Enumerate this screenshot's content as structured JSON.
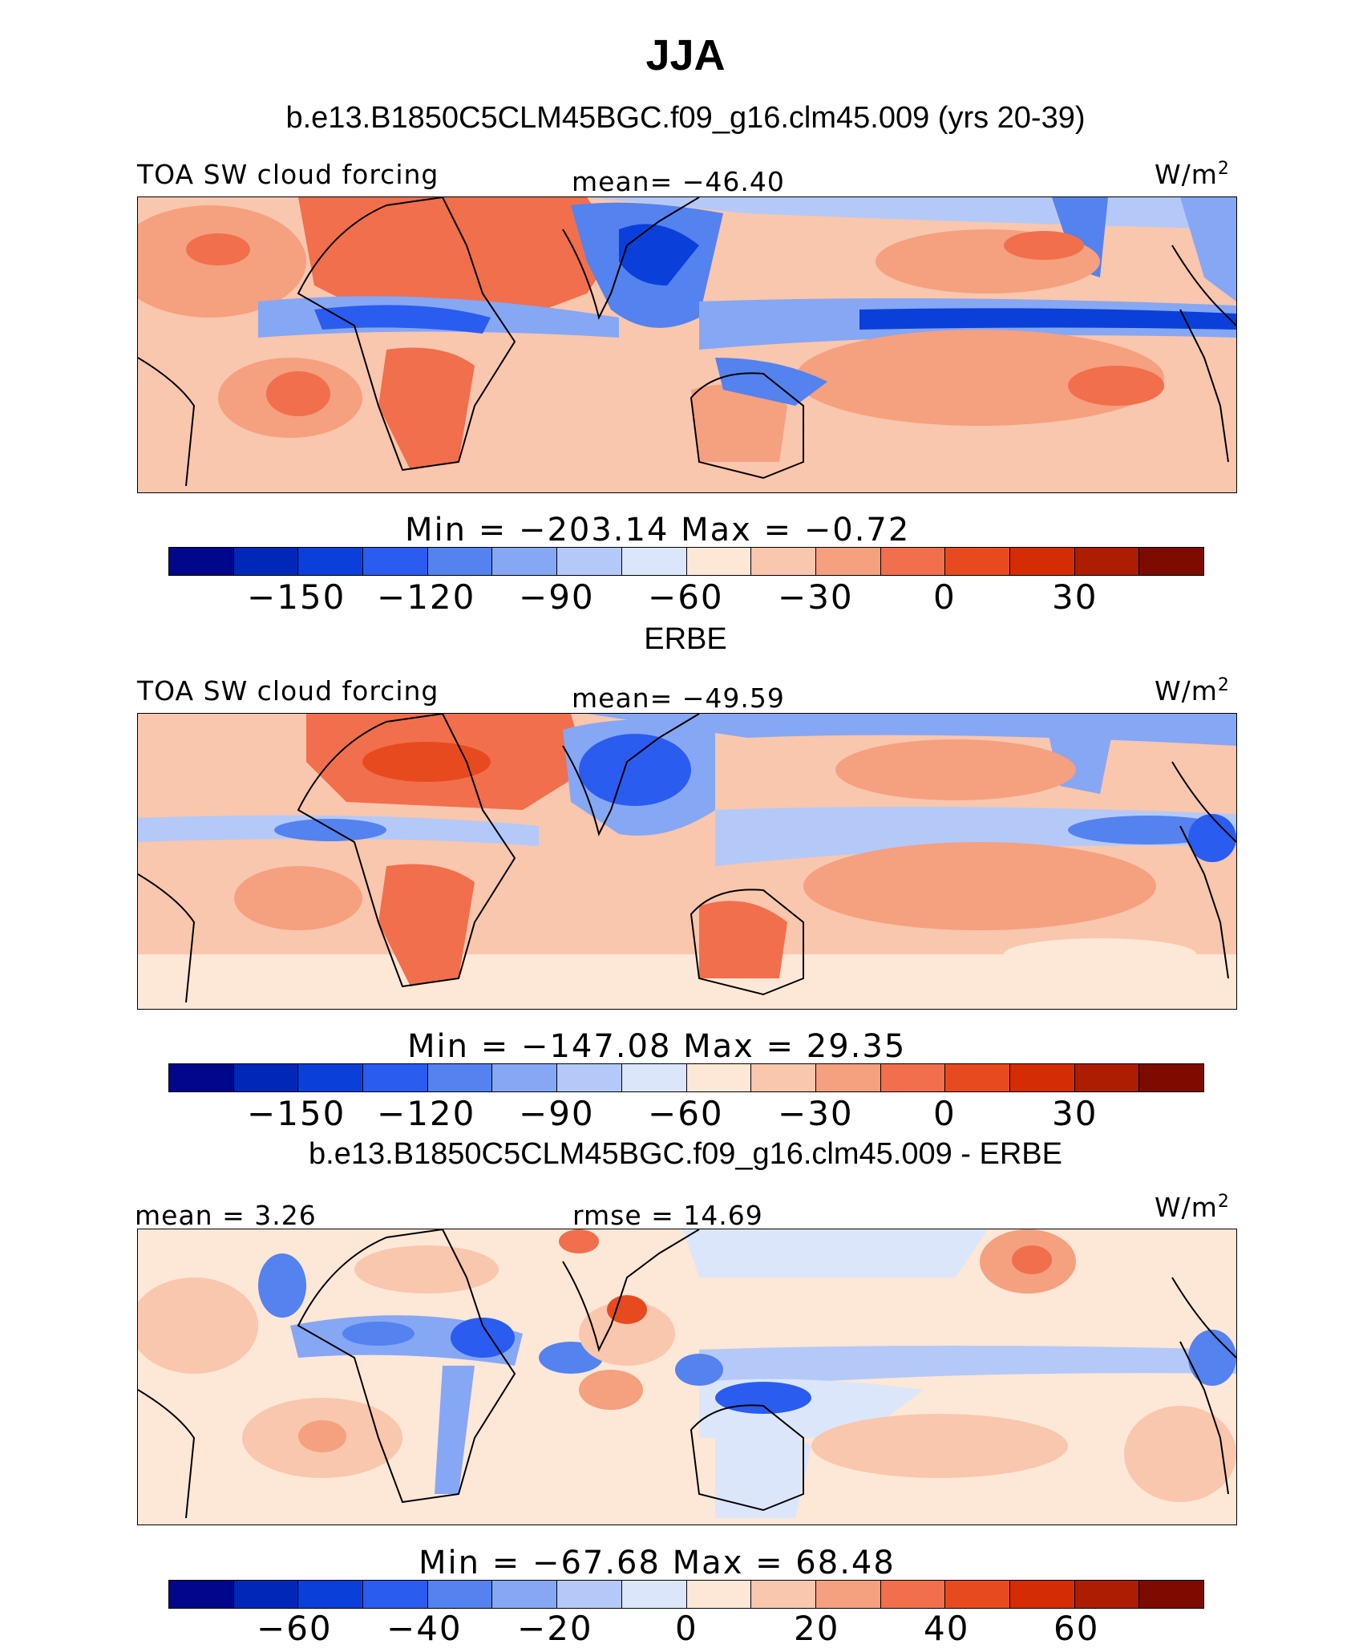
{
  "title": "JJA",
  "panels": [
    {
      "subtitle": "b.e13.B1850C5CLM45BGC.f09_g16.clm45.009 (yrs 20-39)",
      "left_label": "TOA SW cloud forcing",
      "center_label": "mean= −46.40",
      "units": "W/m",
      "units_sup": "2",
      "minmax": "Min  =  −203.14  Max  =   −0.72",
      "colorbar_ticks": [
        "−150",
        "−120",
        "−90",
        "−60",
        "−30",
        "0",
        "30"
      ]
    },
    {
      "subtitle": "ERBE",
      "left_label": "TOA SW cloud forcing",
      "center_label": "mean= −49.59",
      "units": "W/m",
      "units_sup": "2",
      "minmax": "Min  =  −147.08  Max  =   29.35",
      "colorbar_ticks": [
        "−150",
        "−120",
        "−90",
        "−60",
        "−30",
        "0",
        "30"
      ]
    },
    {
      "subtitle": "b.e13.B1850C5CLM45BGC.f09_g16.clm45.009 - ERBE",
      "left_label": "mean =   3.26",
      "center_label": "rmse =   14.69",
      "units": "W/m",
      "units_sup": "2",
      "minmax": "Min  =  −67.68  Max  =   68.48",
      "colorbar_ticks": [
        "−60",
        "−40",
        "−20",
        "0",
        "20",
        "40",
        "60"
      ]
    }
  ],
  "colorbar_colors": [
    "#00078a",
    "#0028b8",
    "#0a3fd9",
    "#2a5cf0",
    "#5482ef",
    "#86a7f4",
    "#b4c9f7",
    "#dce6fa",
    "#fde7d7",
    "#f9c6ae",
    "#f5a07f",
    "#f16f4c",
    "#e84a1f",
    "#d42c05",
    "#ad1d02",
    "#7d0b00"
  ]
}
